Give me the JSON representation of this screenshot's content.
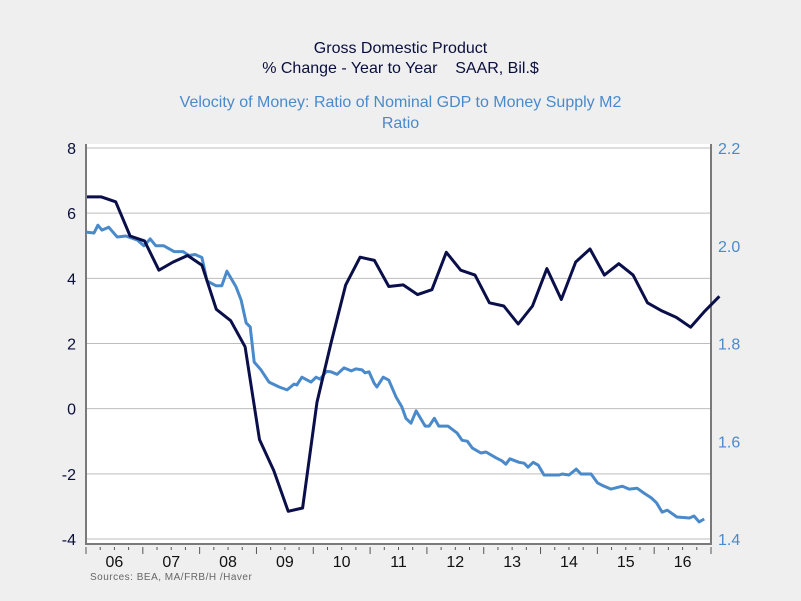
{
  "chart_data": [
    {
      "type": "line",
      "title": "Gross Domestic Product",
      "subtitle": "% Change - Year to Year    SAAR, Bil.$",
      "axis": "left",
      "ylim": [
        -4,
        8
      ],
      "yticks": [
        "8",
        "6",
        "4",
        "2",
        "0",
        "-2",
        "-4"
      ],
      "color": "#0a0f4a",
      "x_start": "2006Q1",
      "frequency": "quarterly",
      "values": [
        6.5,
        6.5,
        6.35,
        5.3,
        5.15,
        4.25,
        4.5,
        4.7,
        4.4,
        3.05,
        2.7,
        1.9,
        -0.95,
        -1.9,
        -3.15,
        -3.05,
        0.2,
        2.05,
        3.8,
        4.65,
        4.55,
        3.75,
        3.8,
        3.5,
        3.65,
        4.8,
        4.25,
        4.1,
        3.25,
        3.15,
        2.6,
        3.15,
        4.3,
        3.35,
        4.5,
        4.9,
        4.1,
        4.45,
        4.1,
        3.25,
        3.0,
        2.8,
        2.5,
        3.0,
        3.45
      ]
    },
    {
      "type": "line",
      "title": "Velocity of Money: Ratio of Nominal GDP to Money Supply M2",
      "subtitle": "Ratio",
      "axis": "right",
      "ylim": [
        1.4,
        2.2
      ],
      "yticks": [
        "2.2",
        "2.0",
        "1.8",
        "1.6",
        "1.4"
      ],
      "color": "#4a8acb",
      "points": [
        [
          2006.0,
          2.028
        ],
        [
          2006.14,
          2.026
        ],
        [
          2006.21,
          2.042
        ],
        [
          2006.28,
          2.032
        ],
        [
          2006.4,
          2.038
        ],
        [
          2006.55,
          2.018
        ],
        [
          2006.7,
          2.02
        ],
        [
          2006.9,
          2.012
        ],
        [
          2007.02,
          2.0
        ],
        [
          2007.13,
          2.014
        ],
        [
          2007.23,
          2.0
        ],
        [
          2007.37,
          2.0
        ],
        [
          2007.55,
          1.988
        ],
        [
          2007.71,
          1.988
        ],
        [
          2007.81,
          1.98
        ],
        [
          2007.92,
          1.982
        ],
        [
          2008.04,
          1.976
        ],
        [
          2008.13,
          1.928
        ],
        [
          2008.29,
          1.918
        ],
        [
          2008.39,
          1.918
        ],
        [
          2008.48,
          1.948
        ],
        [
          2008.64,
          1.916
        ],
        [
          2008.73,
          1.889
        ],
        [
          2008.82,
          1.842
        ],
        [
          2008.89,
          1.834
        ],
        [
          2008.96,
          1.762
        ],
        [
          2009.08,
          1.746
        ],
        [
          2009.22,
          1.721
        ],
        [
          2009.4,
          1.711
        ],
        [
          2009.54,
          1.705
        ],
        [
          2009.66,
          1.717
        ],
        [
          2009.71,
          1.715
        ],
        [
          2009.8,
          1.731
        ],
        [
          2009.96,
          1.721
        ],
        [
          2010.05,
          1.731
        ],
        [
          2010.12,
          1.727
        ],
        [
          2010.23,
          1.743
        ],
        [
          2010.31,
          1.742
        ],
        [
          2010.42,
          1.737
        ],
        [
          2010.54,
          1.75
        ],
        [
          2010.67,
          1.744
        ],
        [
          2010.75,
          1.748
        ],
        [
          2010.86,
          1.746
        ],
        [
          2010.91,
          1.74
        ],
        [
          2010.98,
          1.742
        ],
        [
          2011.07,
          1.719
        ],
        [
          2011.12,
          1.711
        ],
        [
          2011.23,
          1.731
        ],
        [
          2011.33,
          1.725
        ],
        [
          2011.46,
          1.69
        ],
        [
          2011.56,
          1.67
        ],
        [
          2011.63,
          1.647
        ],
        [
          2011.72,
          1.637
        ],
        [
          2011.81,
          1.662
        ],
        [
          2011.97,
          1.631
        ],
        [
          2012.04,
          1.631
        ],
        [
          2012.13,
          1.647
        ],
        [
          2012.21,
          1.631
        ],
        [
          2012.37,
          1.631
        ],
        [
          2012.53,
          1.617
        ],
        [
          2012.62,
          1.602
        ],
        [
          2012.71,
          1.6
        ],
        [
          2012.8,
          1.586
        ],
        [
          2012.95,
          1.576
        ],
        [
          2013.04,
          1.578
        ],
        [
          2013.22,
          1.566
        ],
        [
          2013.32,
          1.56
        ],
        [
          2013.39,
          1.553
        ],
        [
          2013.46,
          1.564
        ],
        [
          2013.62,
          1.557
        ],
        [
          2013.71,
          1.555
        ],
        [
          2013.78,
          1.547
        ],
        [
          2013.87,
          1.557
        ],
        [
          2013.96,
          1.551
        ],
        [
          2014.06,
          1.531
        ],
        [
          2014.33,
          1.531
        ],
        [
          2014.38,
          1.533
        ],
        [
          2014.5,
          1.531
        ],
        [
          2014.63,
          1.543
        ],
        [
          2014.71,
          1.533
        ],
        [
          2014.89,
          1.533
        ],
        [
          2015.0,
          1.515
        ],
        [
          2015.08,
          1.51
        ],
        [
          2015.24,
          1.502
        ],
        [
          2015.44,
          1.508
        ],
        [
          2015.56,
          1.502
        ],
        [
          2015.7,
          1.504
        ],
        [
          2015.82,
          1.494
        ],
        [
          2015.95,
          1.484
        ],
        [
          2016.04,
          1.474
        ],
        [
          2016.14,
          1.455
        ],
        [
          2016.23,
          1.459
        ],
        [
          2016.4,
          1.445
        ],
        [
          2016.62,
          1.443
        ],
        [
          2016.7,
          1.447
        ],
        [
          2016.79,
          1.435
        ],
        [
          2016.88,
          1.441
        ]
      ]
    }
  ],
  "x_axis": {
    "xlim": [
      2006,
      2017
    ],
    "tick_labels": [
      "06",
      "07",
      "08",
      "09",
      "10",
      "11",
      "12",
      "13",
      "14",
      "15",
      "16"
    ]
  },
  "grid": true,
  "footer": {
    "sources": "Sources:  BEA, MA/FRB/H /Haver"
  }
}
